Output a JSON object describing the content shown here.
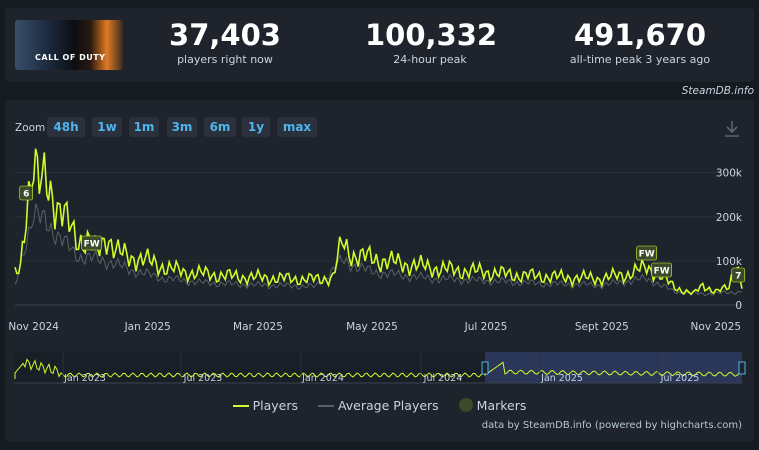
{
  "header": {
    "game_image_text": "CALL OF DUTY",
    "stats": [
      {
        "value": "37,403",
        "label": "players right now"
      },
      {
        "value": "100,332",
        "label": "24-hour peak"
      },
      {
        "value": "491,670",
        "label": "all-time peak 3 years ago"
      }
    ],
    "credit": "SteamDB.info"
  },
  "zoom": {
    "label": "Zoom",
    "buttons": [
      "48h",
      "1w",
      "1m",
      "3m",
      "6m",
      "1y",
      "max"
    ]
  },
  "colors": {
    "players": "#d0fc2a",
    "average": "#5b6068",
    "marker": "#3a4a2a",
    "accent": "#4fb3ec"
  },
  "chart_data": {
    "type": "line",
    "y_ticks": [
      "300k",
      "200k",
      "100k",
      "0"
    ],
    "ylim": [
      0,
      340000
    ],
    "x_ticks": [
      "Nov 2024",
      "Jan 2025",
      "Mar 2025",
      "May 2025",
      "Jul 2025",
      "Sept 2025",
      "Nov 2025"
    ],
    "x_range": [
      "2024-10-22",
      "2025-11-15"
    ],
    "series": [
      {
        "name": "Players",
        "points": [
          [
            "2024-10-22",
            70000
          ],
          [
            "2024-10-25",
            90000
          ],
          [
            "2024-10-28",
            230000
          ],
          [
            "2024-11-01",
            310000
          ],
          [
            "2024-11-04",
            260000
          ],
          [
            "2024-11-08",
            300000
          ],
          [
            "2024-11-11",
            250000
          ],
          [
            "2024-11-15",
            210000
          ],
          [
            "2024-11-20",
            180000
          ],
          [
            "2024-11-25",
            150000
          ],
          [
            "2024-12-01",
            140000
          ],
          [
            "2024-12-05",
            120000
          ],
          [
            "2024-12-10",
            160000
          ],
          [
            "2024-12-15",
            120000
          ],
          [
            "2024-12-22",
            110000
          ],
          [
            "2025-01-01",
            100000
          ],
          [
            "2025-01-10",
            85000
          ],
          [
            "2025-01-20",
            75000
          ],
          [
            "2025-02-01",
            70000
          ],
          [
            "2025-02-15",
            65000
          ],
          [
            "2025-03-01",
            62000
          ],
          [
            "2025-03-15",
            60000
          ],
          [
            "2025-04-01",
            58000
          ],
          [
            "2025-04-10",
            62000
          ],
          [
            "2025-04-15",
            140000
          ],
          [
            "2025-04-20",
            115000
          ],
          [
            "2025-05-01",
            105000
          ],
          [
            "2025-05-15",
            95000
          ],
          [
            "2025-06-01",
            85000
          ],
          [
            "2025-06-15",
            78000
          ],
          [
            "2025-07-01",
            75000
          ],
          [
            "2025-07-15",
            68000
          ],
          [
            "2025-08-01",
            65000
          ],
          [
            "2025-08-15",
            62000
          ],
          [
            "2025-09-01",
            60000
          ],
          [
            "2025-09-15",
            70000
          ],
          [
            "2025-09-25",
            85000
          ],
          [
            "2025-10-01",
            72000
          ],
          [
            "2025-10-10",
            40000
          ],
          [
            "2025-10-20",
            25000
          ],
          [
            "2025-10-25",
            45000
          ],
          [
            "2025-11-01",
            30000
          ],
          [
            "2025-11-08",
            40000
          ],
          [
            "2025-11-12",
            100000
          ],
          [
            "2025-11-15",
            37000
          ]
        ]
      },
      {
        "name": "Average Players",
        "points": [
          [
            "2024-10-22",
            40000
          ],
          [
            "2024-10-28",
            150000
          ],
          [
            "2024-11-01",
            200000
          ],
          [
            "2024-11-08",
            190000
          ],
          [
            "2024-11-15",
            150000
          ],
          [
            "2024-11-25",
            110000
          ],
          [
            "2024-12-10",
            100000
          ],
          [
            "2024-12-22",
            80000
          ],
          [
            "2025-01-10",
            60000
          ],
          [
            "2025-02-01",
            50000
          ],
          [
            "2025-03-01",
            45000
          ],
          [
            "2025-04-01",
            42000
          ],
          [
            "2025-04-15",
            100000
          ],
          [
            "2025-05-01",
            75000
          ],
          [
            "2025-06-01",
            60000
          ],
          [
            "2025-07-01",
            55000
          ],
          [
            "2025-08-01",
            48000
          ],
          [
            "2025-09-01",
            45000
          ],
          [
            "2025-09-25",
            60000
          ],
          [
            "2025-10-10",
            30000
          ],
          [
            "2025-10-25",
            25000
          ],
          [
            "2025-11-08",
            28000
          ],
          [
            "2025-11-15",
            30000
          ]
        ]
      }
    ],
    "markers": [
      {
        "date": "2024-10-28",
        "label": "6"
      },
      {
        "date": "2024-12-02",
        "label": "FW"
      },
      {
        "date": "2025-09-25",
        "label": "FW"
      },
      {
        "date": "2025-10-03",
        "label": "FW"
      },
      {
        "date": "2025-11-13",
        "label": "7"
      }
    ],
    "navigator_labels": [
      "Jan 2023",
      "Jul 2023",
      "Jan 2024",
      "Jul 2024",
      "Jan 2025",
      "Jul 2025"
    ]
  },
  "legend": [
    "Players",
    "Average Players",
    "Markers"
  ],
  "footer": {
    "credit": "data by SteamDB.info (powered by highcharts.com)"
  }
}
